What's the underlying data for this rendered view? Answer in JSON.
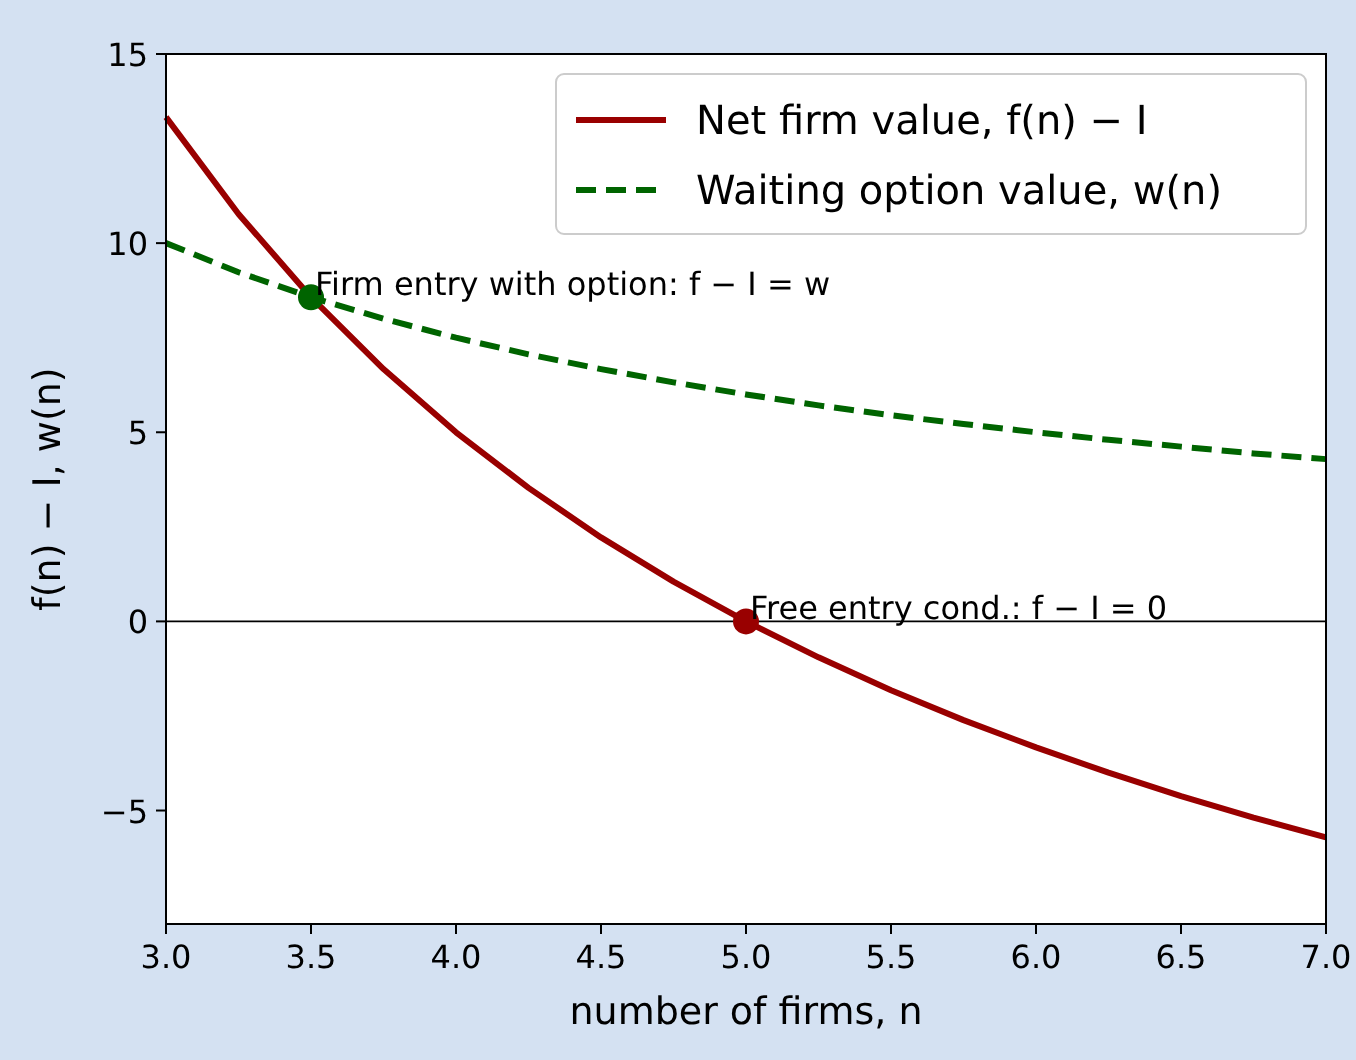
{
  "chart_data": {
    "type": "line",
    "xlabel": "number of firms, n",
    "ylabel": "f(n) − I, w(n)",
    "xlim": [
      3,
      7
    ],
    "ylim": [
      -8,
      15
    ],
    "xticks": [
      {
        "value": 3,
        "label": "3.0"
      },
      {
        "value": 3.5,
        "label": "3.5"
      },
      {
        "value": 4,
        "label": "4.0"
      },
      {
        "value": 4.5,
        "label": "4.5"
      },
      {
        "value": 5,
        "label": "5.0"
      },
      {
        "value": 5.5,
        "label": "5.5"
      },
      {
        "value": 6,
        "label": "6.0"
      },
      {
        "value": 6.5,
        "label": "6.5"
      },
      {
        "value": 7,
        "label": "7.0"
      }
    ],
    "yticks": [
      {
        "value": -5,
        "label": "−5"
      },
      0,
      5,
      10,
      15
    ],
    "grid": false,
    "legend": "top right",
    "x": [
      3,
      3.25,
      3.5,
      3.75,
      4,
      4.25,
      4.5,
      4.75,
      5,
      5.25,
      5.5,
      5.75,
      6,
      6.25,
      6.5,
      6.75,
      7
    ],
    "series": [
      {
        "name": "Net firm value, f(n) − I",
        "color": "#990000",
        "line_style": "solid",
        "marker": "none",
        "values": [
          13.33,
          10.77,
          8.57,
          6.67,
          5,
          3.53,
          2.22,
          1.05,
          0,
          -0.95,
          -1.82,
          -2.61,
          -3.33,
          -4,
          -4.62,
          -5.19,
          -5.71
        ]
      },
      {
        "name": "Waiting option value, w(n)",
        "color": "#006400",
        "line_style": "dashed",
        "marker": "none",
        "values": [
          10,
          9.23,
          8.57,
          8,
          7.5,
          7.06,
          6.67,
          6.32,
          6,
          5.71,
          5.45,
          5.22,
          5,
          4.8,
          4.62,
          4.44,
          4.29
        ]
      },
      {
        "type": "scatter",
        "color": "#006400",
        "marker": "circle",
        "x": [
          3.5
        ],
        "values": [
          8.57
        ]
      },
      {
        "type": "scatter",
        "color": "#990000",
        "marker": "circle",
        "x": [
          5
        ],
        "values": [
          0
        ]
      }
    ],
    "ref_lines": [
      {
        "axis": "y",
        "value": 0,
        "color": "#000000",
        "line_style": "solid"
      }
    ],
    "annotations": [
      {
        "text": "Firm entry with option: f − I = w",
        "x": 3.5,
        "y": 8.57
      },
      {
        "text": "Free entry cond.: f − I = 0",
        "x": 5,
        "y": 0
      }
    ]
  }
}
